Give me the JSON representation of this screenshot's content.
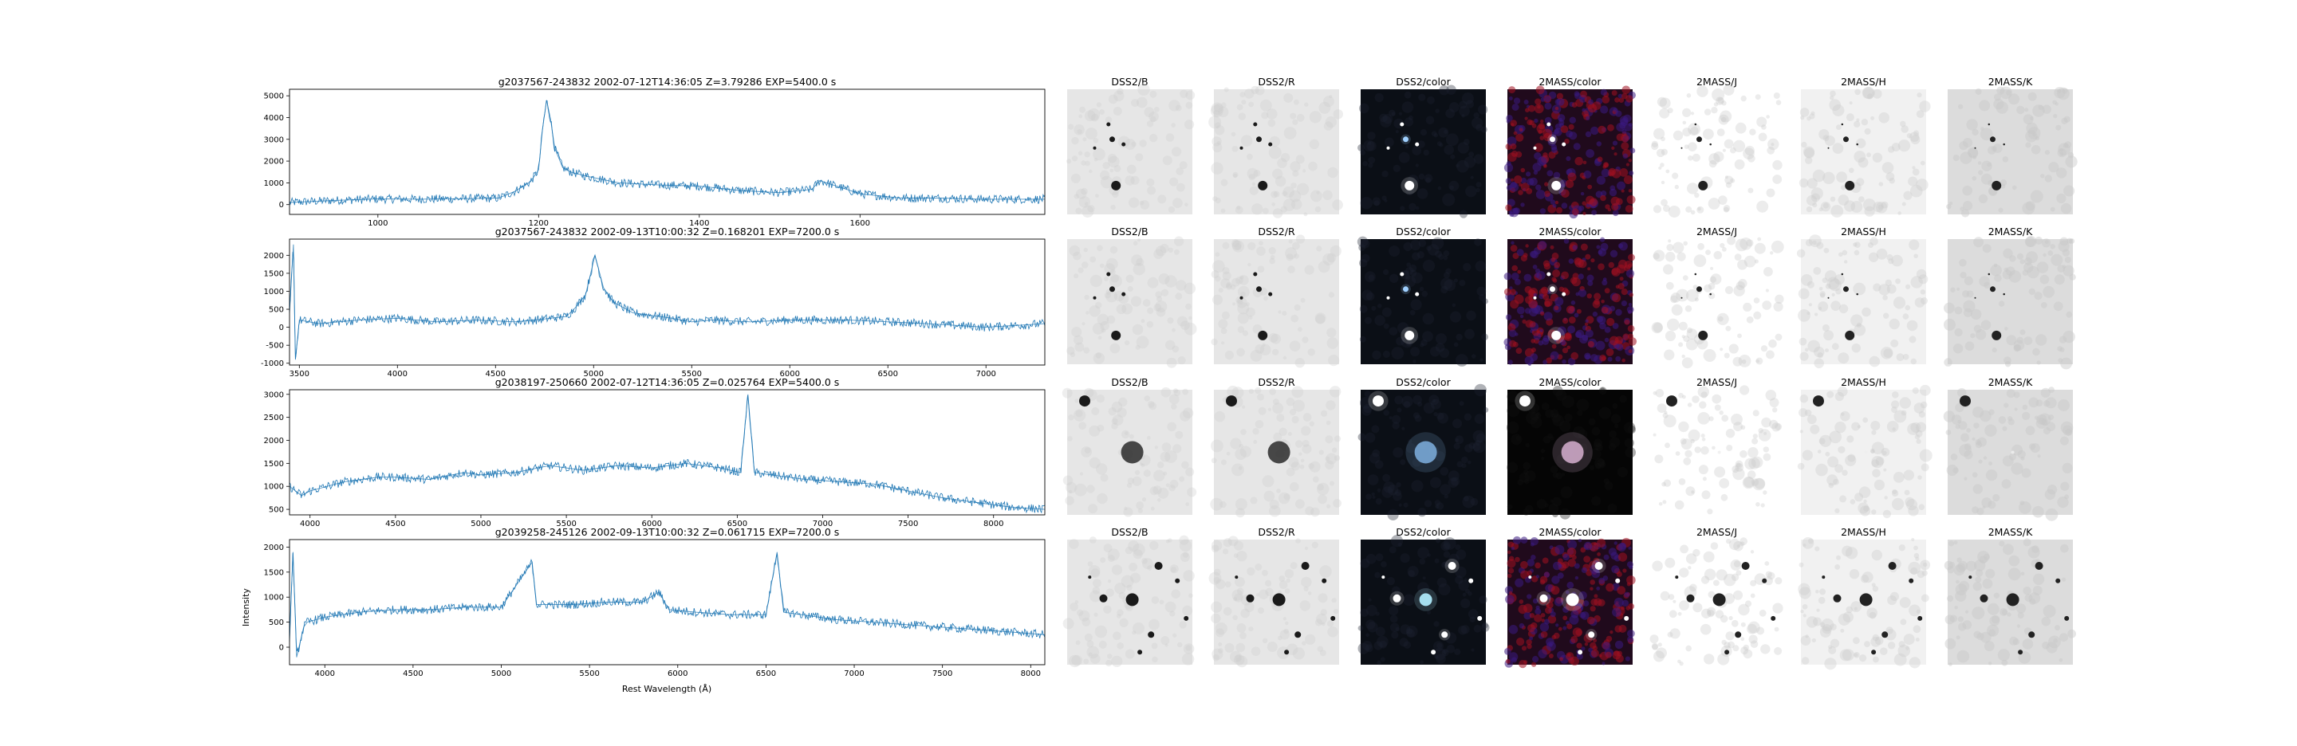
{
  "figure": {
    "ylabel": "Intensity",
    "xlabel": "Rest Wavelength (Å)"
  },
  "chart_data": [
    {
      "type": "line",
      "title": "g2037567-243832 2002-07-12T14:36:05 Z=3.79286 EXP=5400.0 s",
      "xlabel": "",
      "ylabel": "",
      "xlim": [
        890,
        1830
      ],
      "ylim": [
        -450,
        5300
      ],
      "xticks": [
        1000,
        1200,
        1400,
        1600
      ],
      "yticks": [
        0,
        1000,
        2000,
        3000,
        4000,
        5000
      ],
      "color": "#1f77b4",
      "series": [
        {
          "x": [
            890,
            950,
            1000,
            1050,
            1100,
            1150,
            1170,
            1190,
            1200,
            1205,
            1210,
            1215,
            1220,
            1230,
            1240,
            1260,
            1300,
            1350,
            1400,
            1450,
            1500,
            1540,
            1550,
            1600,
            1650,
            1700,
            1750,
            1800,
            1830
          ],
          "y": [
            100,
            200,
            260,
            250,
            270,
            300,
            600,
            1050,
            1600,
            3500,
            4800,
            3900,
            2600,
            1700,
            1500,
            1300,
            1000,
            900,
            850,
            650,
            550,
            700,
            1100,
            500,
            300,
            300,
            250,
            250,
            250
          ]
        }
      ]
    },
    {
      "type": "line",
      "title": "g2037567-243832 2002-09-13T10:00:32 Z=0.168201 EXP=7200.0 s",
      "xlabel": "",
      "ylabel": "",
      "xlim": [
        3450,
        7300
      ],
      "ylim": [
        -1050,
        2450
      ],
      "xticks": [
        3500,
        4000,
        4500,
        5000,
        5500,
        6000,
        6500,
        7000
      ],
      "yticks": [
        -1000,
        -500,
        0,
        500,
        1000,
        1500,
        2000
      ],
      "color": "#1f77b4",
      "series": [
        {
          "x": [
            3450,
            3470,
            3480,
            3500,
            3600,
            3800,
            4000,
            4200,
            4400,
            4600,
            4700,
            4860,
            4900,
            4959,
            5007,
            5050,
            5100,
            5200,
            5400,
            5500,
            5600,
            5800,
            6000,
            6300,
            6500,
            6700,
            7000,
            7300
          ],
          "y": [
            400,
            2300,
            -900,
            200,
            100,
            200,
            250,
            150,
            200,
            150,
            200,
            300,
            500,
            900,
            2000,
            1100,
            700,
            400,
            250,
            150,
            200,
            150,
            200,
            200,
            150,
            100,
            0,
            100
          ]
        }
      ]
    },
    {
      "type": "line",
      "title": "g2038197-250660 2002-07-12T14:36:05 Z=0.025764 EXP=5400.0 s",
      "xlabel": "",
      "ylabel": "",
      "xlim": [
        3880,
        8300
      ],
      "ylim": [
        380,
        3100
      ],
      "xticks": [
        4000,
        4500,
        5000,
        5500,
        6000,
        6500,
        7000,
        7500,
        8000
      ],
      "yticks": [
        500,
        1000,
        1500,
        2000,
        2500,
        3000
      ],
      "color": "#1f77b4",
      "series": [
        {
          "x": [
            3880,
            3950,
            4000,
            4200,
            4400,
            4500,
            4700,
            4900,
            5000,
            5200,
            5400,
            5600,
            5800,
            6000,
            6200,
            6400,
            6520,
            6563,
            6600,
            6700,
            6900,
            7100,
            7300,
            7500,
            7700,
            7900,
            8100,
            8300
          ],
          "y": [
            1000,
            800,
            900,
            1100,
            1200,
            1200,
            1150,
            1300,
            1250,
            1300,
            1450,
            1350,
            1450,
            1400,
            1500,
            1400,
            1300,
            3000,
            1300,
            1250,
            1150,
            1100,
            1050,
            900,
            750,
            650,
            550,
            500
          ]
        }
      ]
    },
    {
      "type": "line",
      "title": "g2039258-245126 2002-09-13T10:00:32 Z=0.061715 EXP=7200.0 s",
      "xlabel": "Rest Wavelength (Å)",
      "ylabel": "Intensity",
      "xlim": [
        3800,
        8080
      ],
      "ylim": [
        -350,
        2150
      ],
      "xticks": [
        4000,
        4500,
        5000,
        5500,
        6000,
        6500,
        7000,
        7500,
        8000
      ],
      "yticks": [
        0,
        500,
        1000,
        1500,
        2000
      ],
      "color": "#1f77b4",
      "series": [
        {
          "x": [
            3800,
            3820,
            3840,
            3880,
            3900,
            4000,
            4200,
            4400,
            4600,
            4800,
            5000,
            5175,
            5200,
            5400,
            5600,
            5800,
            5893,
            5950,
            6100,
            6300,
            6500,
            6563,
            6600,
            6700,
            6900,
            7100,
            7300,
            7500,
            7700,
            7900,
            8080
          ],
          "y": [
            200,
            1900,
            -200,
            400,
            500,
            600,
            700,
            750,
            750,
            800,
            800,
            1700,
            850,
            850,
            900,
            900,
            1100,
            750,
            700,
            650,
            650,
            1900,
            700,
            650,
            550,
            500,
            450,
            400,
            350,
            300,
            250
          ]
        }
      ]
    }
  ],
  "thumbnails": [
    {
      "row": 0,
      "labels": [
        "DSS2/B",
        "DSS2/R",
        "DSS2/color",
        "2MASS/color",
        "2MASS/J",
        "2MASS/H",
        "2MASS/K"
      ]
    },
    {
      "row": 1,
      "labels": [
        "DSS2/B",
        "DSS2/R",
        "DSS2/color",
        "2MASS/color",
        "2MASS/J",
        "2MASS/H",
        "2MASS/K"
      ]
    },
    {
      "row": 2,
      "labels": [
        "DSS2/B",
        "DSS2/R",
        "DSS2/color",
        "2MASS/color",
        "2MASS/J",
        "2MASS/H",
        "2MASS/K"
      ]
    },
    {
      "row": 3,
      "labels": [
        "DSS2/B",
        "DSS2/R",
        "DSS2/color",
        "2MASS/color",
        "2MASS/J",
        "2MASS/H",
        "2MASS/K"
      ]
    }
  ]
}
